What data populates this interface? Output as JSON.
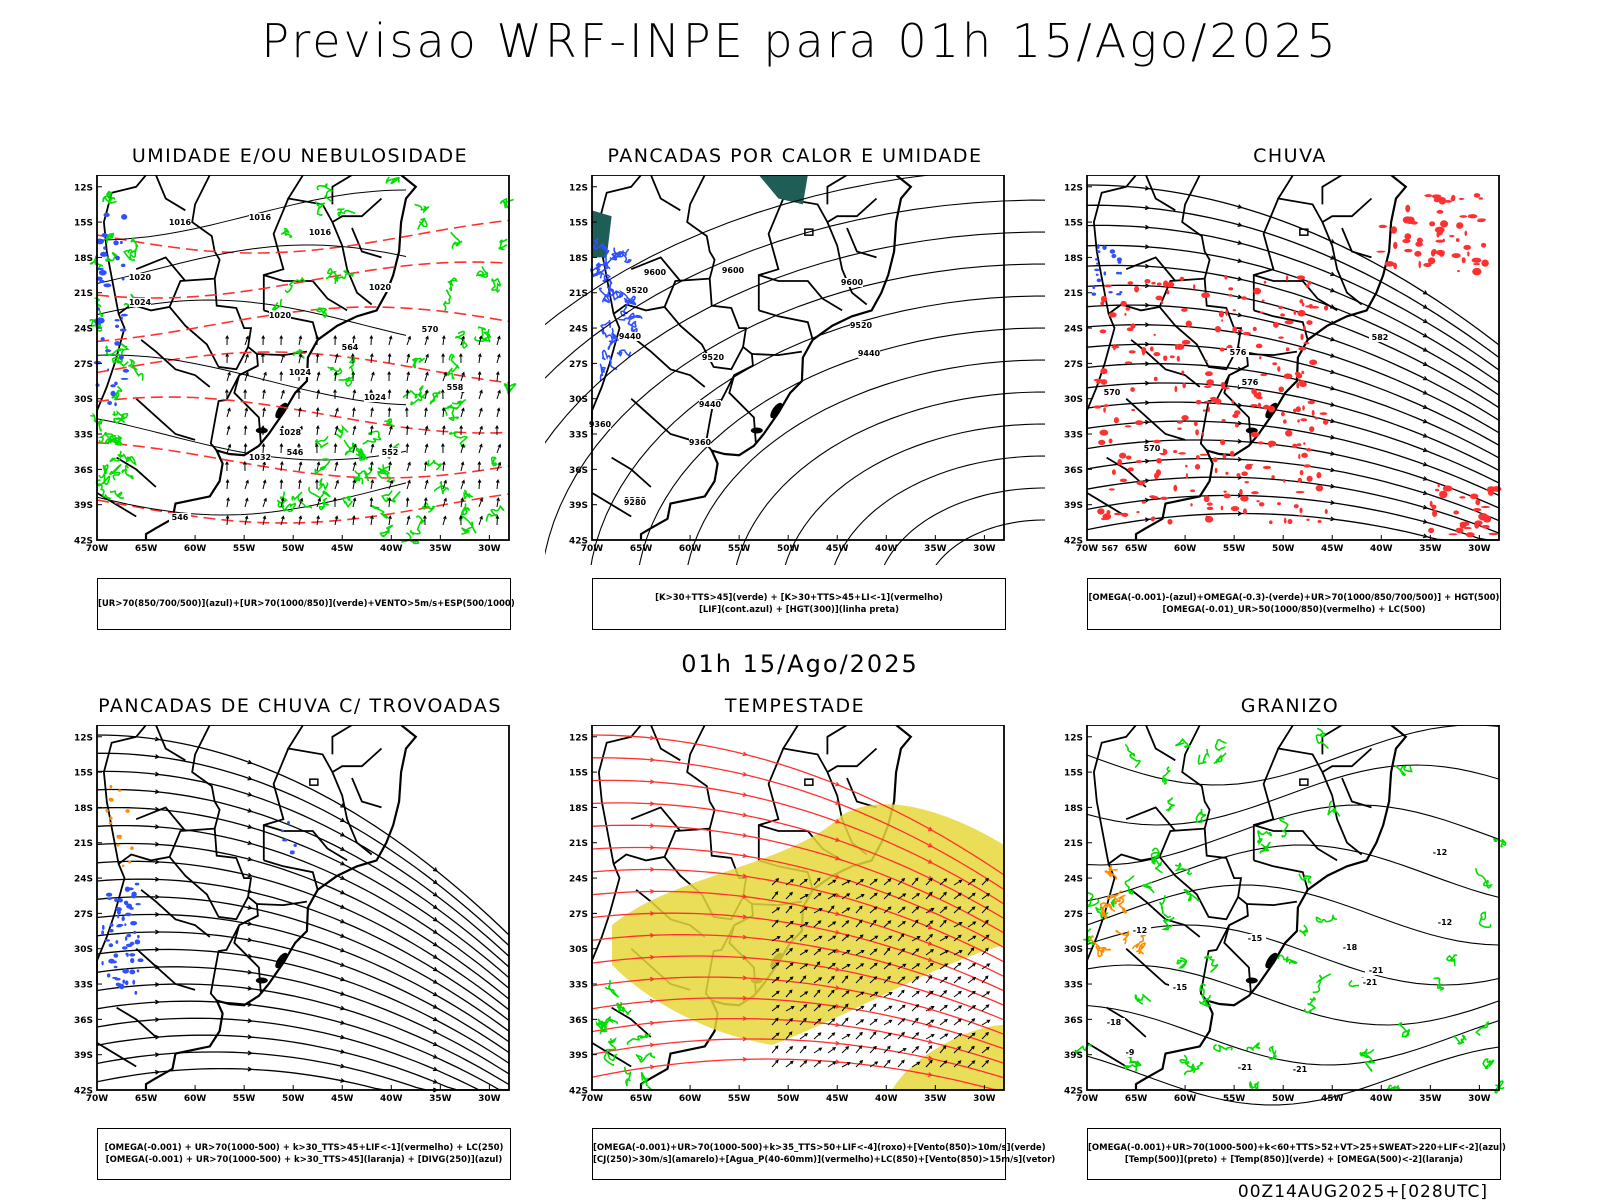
{
  "header": {
    "title": "Previsao WRF-INPE  para 01h 15/Ago/2025",
    "subtitle_time": "01h 15/Ago/2025",
    "footer": "00Z14AUG2025+[028UTC]"
  },
  "axes": {
    "lat_labels": [
      "12S",
      "15S",
      "18S",
      "21S",
      "24S",
      "27S",
      "30S",
      "33S",
      "36S",
      "39S",
      "42S"
    ],
    "lon_labels": [
      "70W",
      "65W",
      "60W",
      "55W",
      "50W",
      "45W",
      "40W",
      "35W",
      "30W"
    ]
  },
  "panels": [
    {
      "title": "UMIDADE E/OU NEBULOSIDADE",
      "legend": [
        "[UR>70(850/700/500)](azul)+[UR>70(1000/850)](verde)+VENTO>5m/s+ESP(500/1000)"
      ],
      "contour_labels": [
        "1016",
        "1016",
        "1016",
        "1020",
        "1020",
        "1020",
        "1024",
        "1024",
        "1024",
        "1028",
        "1032",
        "570",
        "564",
        "558",
        "552",
        "546",
        "546"
      ]
    },
    {
      "title": "PANCADAS POR CALOR E UMIDADE",
      "legend": [
        "[K>30+TTS>45](verde) + [K>30+TTS>45+LI<-1](vermelho)",
        "[LIF](cont.azul) + [HGT(300)](linha preta)"
      ],
      "contour_labels": [
        "9600",
        "9600",
        "9600",
        "9520",
        "9520",
        "9520",
        "9440",
        "9440",
        "9440",
        "9360",
        "9360",
        "9280",
        "9280"
      ]
    },
    {
      "title": "CHUVA",
      "legend": [
        "[OMEGA(-0.001)-(azul)+OMEGA(-0.3)-(verde)+UR>70(1000/850/700/500)] + HGT(500)",
        "[OMEGA(-0.01)_UR>50(1000/850)(vermelho) + LC(500)"
      ],
      "contour_labels": [
        "582",
        "576",
        "576",
        "570",
        "570",
        "567"
      ]
    },
    {
      "title": "PANCADAS DE CHUVA C/ TROVOADAS",
      "legend": [
        "[OMEGA(-0.001) + UR>70(1000-500) + k>30_TTS>45+LIF<-1](vermelho) + LC(250)",
        "[OMEGA(-0.001) + UR>70(1000-500) + k>30_TTS>45](laranja) + [DIVG(250)](azul)"
      ],
      "contour_labels": []
    },
    {
      "title": "TEMPESTADE",
      "legend": [
        "[OMEGA(-0.001)+UR>70(1000-500)+k>35_TTS>50+LIF<-4](roxo)+[Vento(850)>10m/s](verde)",
        "[CJ(250)>30m/s](amarelo)+[Agua_P(40-60mm)](vermelho)+LC(850)+[Vento(850)>15m/s](vetor)"
      ],
      "contour_labels": []
    },
    {
      "title": "GRANIZO",
      "legend": [
        "[OMEGA(-0.001)+UR>70(1000-500)+k<60+TTS>52+VT>25+SWEAT>220+LIF<-2](azul)",
        "[Temp(500)](preto) + [Temp(850)](verde) + [OMEGA(500)<-2](laranja)"
      ],
      "contour_labels": [
        "-15",
        "-15",
        "-12",
        "-12",
        "-12",
        "-18",
        "-18",
        "-21",
        "-21",
        "-21",
        "-21",
        "-9"
      ]
    }
  ],
  "colors": {
    "green": "#00dd00",
    "red": "#ff3030",
    "blue": "#3050ff",
    "yellow": "#e6d73a",
    "orange": "#ff8c00",
    "teal": "#1f5e57"
  }
}
